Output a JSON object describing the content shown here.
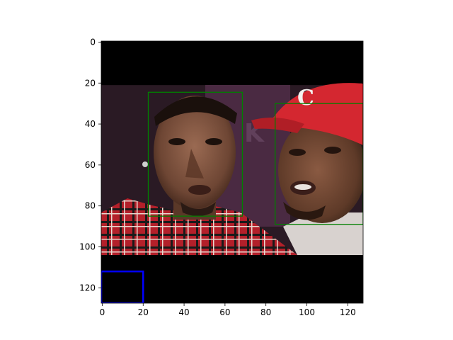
{
  "figure": {
    "image_size": [
      128,
      128
    ],
    "x_ticks": [
      "0",
      "20",
      "40",
      "60",
      "80",
      "100",
      "120"
    ],
    "y_ticks": [
      "0",
      "20",
      "40",
      "60",
      "80",
      "100",
      "120"
    ],
    "x_tick_values": [
      0,
      20,
      40,
      60,
      80,
      100,
      120
    ],
    "y_tick_values": [
      0,
      20,
      40,
      60,
      80,
      100,
      120
    ],
    "photo_region": {
      "x0": 0,
      "x1": 128,
      "y0": 21.5,
      "y1": 104.5
    },
    "boxes": [
      {
        "label": "face-box-left",
        "color": "#008000",
        "x0": 23,
        "y0": 25,
        "x1": 69,
        "y1": 85.5
      },
      {
        "label": "face-box-right",
        "color": "#008000",
        "x0": 85,
        "y0": 30.5,
        "x1": 128,
        "y1": 89.5
      },
      {
        "label": "blue-box",
        "color": "#0000ff",
        "x0": 0,
        "y0": 112.5,
        "x1": 20.5,
        "y1": 128
      }
    ]
  }
}
